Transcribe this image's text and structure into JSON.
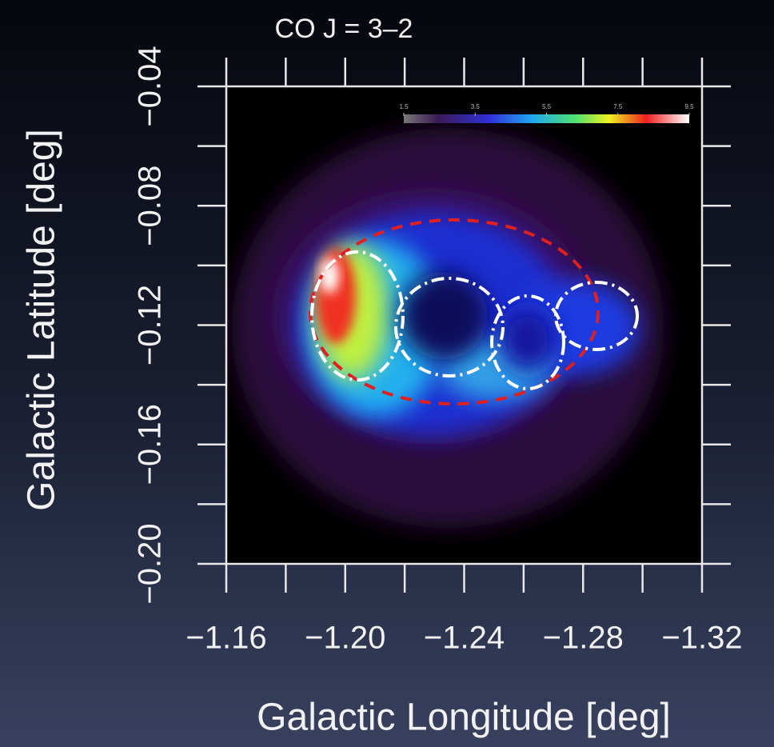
{
  "chart_data": {
    "type": "map",
    "title": "CO J = 3–2",
    "xlabel": "Galactic Longitude [deg]",
    "ylabel": "Galactic Latitude [deg]",
    "xlim": [
      -1.16,
      -1.32
    ],
    "xticks": [
      {
        "value": -1.16,
        "label": "−1.16"
      },
      {
        "value": -1.2,
        "label": "−1.20"
      },
      {
        "value": -1.24,
        "label": "−1.24"
      },
      {
        "value": -1.28,
        "label": "−1.28"
      },
      {
        "value": -1.32,
        "label": "−1.32"
      }
    ],
    "xminorticks": [
      -1.18,
      -1.22,
      -1.26,
      -1.3
    ],
    "ylim": [
      -0.2,
      -0.04
    ],
    "yticks": [
      {
        "value": -0.2,
        "label": "−0.20"
      },
      {
        "value": -0.16,
        "label": "−0.16"
      },
      {
        "value": -0.12,
        "label": "−0.12"
      },
      {
        "value": -0.08,
        "label": "−0.08"
      },
      {
        "value": -0.04,
        "label": "−0.04"
      }
    ],
    "yminorticks": [
      -0.18,
      -0.14,
      -0.1,
      -0.06
    ],
    "colorbar": {
      "lim": [
        1.5,
        9.5
      ],
      "ticks": [
        1.5,
        3.5,
        5.5,
        7.5,
        9.5
      ]
    }
  }
}
